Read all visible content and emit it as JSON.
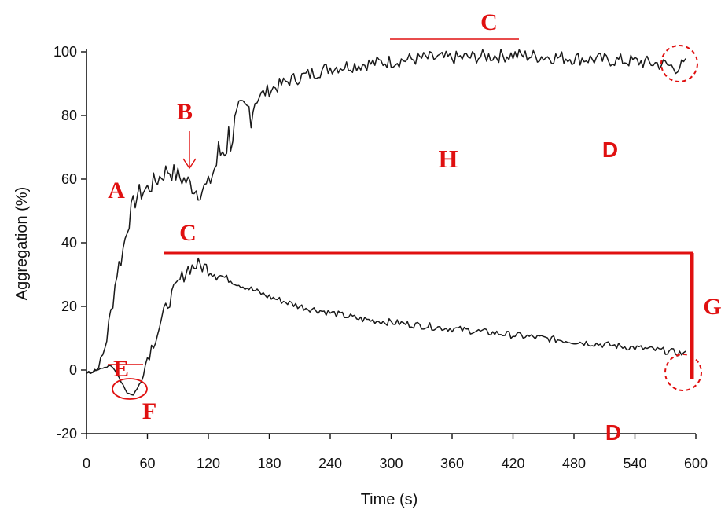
{
  "chart_data": {
    "type": "line",
    "title": "",
    "xlabel": "Time (s)",
    "ylabel": "Aggregation (%)",
    "xlim": [
      0,
      600
    ],
    "ylim": [
      -20,
      100
    ],
    "x_ticks": [
      0,
      60,
      120,
      180,
      240,
      300,
      360,
      420,
      480,
      540,
      600
    ],
    "y_ticks": [
      -20,
      0,
      20,
      40,
      60,
      80,
      100
    ],
    "grid": false,
    "legend": "none",
    "series": [
      {
        "points": [
          [
            0,
            -1
          ],
          [
            10,
            0
          ],
          [
            15,
            3
          ],
          [
            20,
            10
          ],
          [
            25,
            20
          ],
          [
            30,
            31
          ],
          [
            35,
            36
          ],
          [
            40,
            45
          ],
          [
            45,
            51
          ],
          [
            50,
            55
          ],
          [
            55,
            56
          ],
          [
            60,
            57
          ],
          [
            70,
            60
          ],
          [
            80,
            63
          ],
          [
            90,
            61
          ],
          [
            100,
            59
          ],
          [
            110,
            56
          ],
          [
            120,
            58
          ],
          [
            130,
            67
          ],
          [
            140,
            73
          ],
          [
            150,
            78
          ],
          [
            160,
            82
          ],
          [
            170,
            86
          ],
          [
            180,
            88
          ],
          [
            200,
            91
          ],
          [
            220,
            93
          ],
          [
            240,
            95
          ],
          [
            270,
            96
          ],
          [
            300,
            97
          ],
          [
            330,
            98
          ],
          [
            360,
            98
          ],
          [
            420,
            99
          ],
          [
            480,
            98
          ],
          [
            540,
            97
          ],
          [
            570,
            96
          ],
          [
            580,
            95
          ],
          [
            590,
            96
          ]
        ],
        "color": "#1a1a1a"
      },
      {
        "points": [
          [
            0,
            -1
          ],
          [
            10,
            0
          ],
          [
            15,
            1
          ],
          [
            25,
            1
          ],
          [
            30,
            -1
          ],
          [
            35,
            -4
          ],
          [
            40,
            -7
          ],
          [
            45,
            -8
          ],
          [
            50,
            -6
          ],
          [
            55,
            -2
          ],
          [
            60,
            4
          ],
          [
            70,
            12
          ],
          [
            80,
            21
          ],
          [
            90,
            27
          ],
          [
            100,
            32
          ],
          [
            110,
            33
          ],
          [
            120,
            32
          ],
          [
            130,
            30
          ],
          [
            150,
            27
          ],
          [
            180,
            23
          ],
          [
            210,
            20
          ],
          [
            240,
            18
          ],
          [
            270,
            16
          ],
          [
            300,
            15
          ],
          [
            360,
            13
          ],
          [
            420,
            11
          ],
          [
            480,
            9
          ],
          [
            540,
            7
          ],
          [
            570,
            6
          ],
          [
            590,
            5
          ]
        ],
        "color": "#1a1a1a"
      }
    ],
    "colors": {
      "line": "#1a1a1a",
      "annotation": "#e01010"
    },
    "annotations": {
      "A": "A",
      "B": "B",
      "C_top": "C",
      "C_mid": "C",
      "D_upper": "D",
      "D_lower": "D",
      "E": "E",
      "F": "F",
      "G": "G",
      "H": "H"
    }
  }
}
